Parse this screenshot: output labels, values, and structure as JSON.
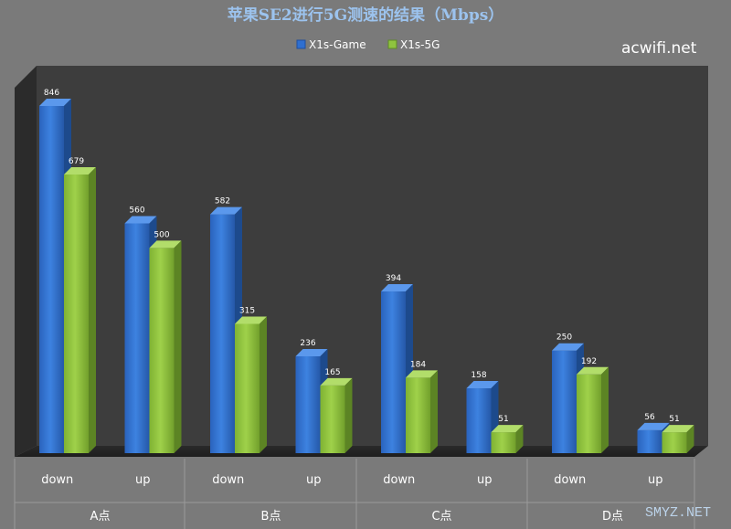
{
  "watermarks": {
    "top_right": "acwifi.net",
    "bottom_right": "SMYZ.NET"
  },
  "colors": {
    "series_1": "#2f6fd0",
    "series_2": "#8fc43f",
    "background": "#7a7a7a",
    "plot_area": "#3d3d3d"
  },
  "chart_data": {
    "type": "bar",
    "title": "苹果SE2进行5G测速的结果（Mbps）",
    "categories": [
      "down",
      "up",
      "down",
      "up",
      "down",
      "up",
      "down",
      "up"
    ],
    "groups": [
      "A点",
      "B点",
      "C点",
      "D点"
    ],
    "series": [
      {
        "name": "X1s-Game",
        "values": [
          846,
          560,
          582,
          236,
          394,
          158,
          250,
          56
        ]
      },
      {
        "name": "X1s-5G",
        "values": [
          679,
          500,
          315,
          165,
          184,
          51,
          192,
          51
        ]
      }
    ],
    "ylim": [
      0,
      846
    ],
    "grid": false,
    "legend_position": "top"
  }
}
